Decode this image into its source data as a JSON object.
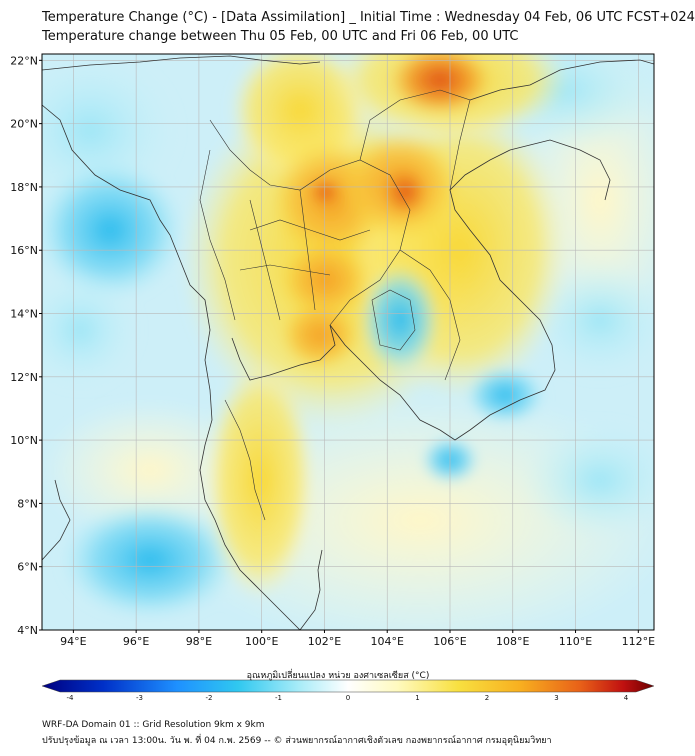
{
  "header": {
    "title_line1": "Temperature Change (°C) - [Data Assimilation] _ Initial Time : Wednesday 04 Feb, 06 UTC FCST+024",
    "title_line2": "Temperature change between Thu 05 Feb, 00 UTC and Fri 06 Feb, 00 UTC"
  },
  "map": {
    "lat_labels": [
      "4°N",
      "6°N",
      "8°N",
      "10°N",
      "12°N",
      "14°N",
      "16°N",
      "18°N",
      "20°N",
      "22°N"
    ],
    "lon_labels": [
      "94°E",
      "96°E",
      "98°E",
      "100°E",
      "102°E",
      "104°E",
      "106°E",
      "108°E",
      "110°E",
      "112°E"
    ],
    "grid_lines": true
  },
  "colorbar": {
    "title": "อุณหภูมิเปลี่ยนแปลง หน่วย องศาเซลเซียส (°C)",
    "ticks": [
      "-4",
      "-3",
      "-2",
      "-1",
      "0",
      "1",
      "2",
      "3",
      "4"
    ],
    "min": -4,
    "max": 4,
    "colors": [
      "#00007f",
      "#0030c8",
      "#1e90ff",
      "#30c8f0",
      "#a8ecf8",
      "#ffffff",
      "#fffac0",
      "#f8e040",
      "#f8b020",
      "#e86018",
      "#c01010",
      "#6a0000"
    ]
  },
  "footer": {
    "line1": "WRF-DA Domain 01 :: Grid Resolution 9km x 9km",
    "line2": "ปรับปรุงข้อมูล ณ เวลา 13:00น. วัน พ. ที่ 04 ก.พ. 2569 -- © ส่วนพยากรณ์อากาศเชิงตัวเลข กองพยากรณ์อากาศ กรมอุตุนิยมวิทยา"
  }
}
